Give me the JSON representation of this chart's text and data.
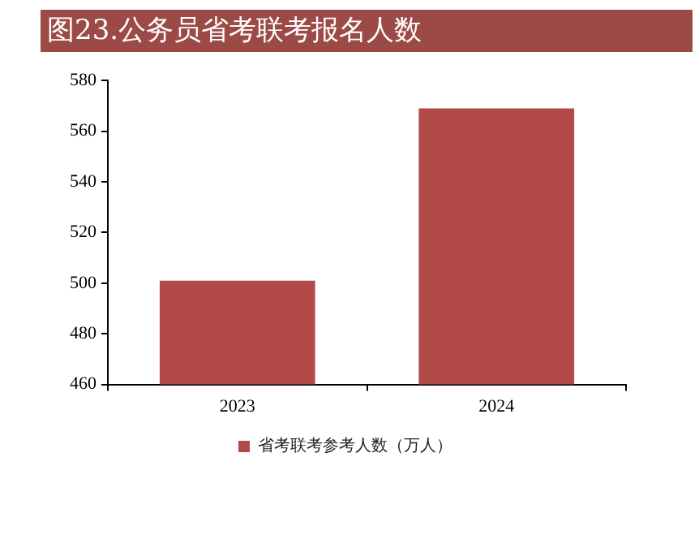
{
  "chart_data": {
    "type": "bar",
    "title": "图23.公务员省考联考报名人数",
    "categories": [
      "2023",
      "2024"
    ],
    "series": [
      {
        "name": "省考联考参考人数（万人）",
        "color": "#b24a48",
        "values": [
          501,
          569
        ]
      }
    ],
    "ylim": [
      460,
      580
    ],
    "yticks": [
      460,
      480,
      500,
      520,
      540,
      560,
      580
    ],
    "grid": false,
    "legend": "bottom"
  }
}
